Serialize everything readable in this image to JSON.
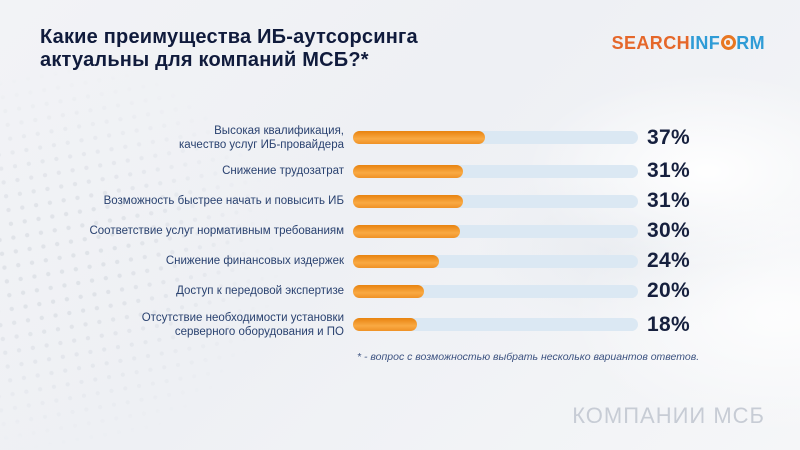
{
  "slide": {
    "title_line1": "Какие преимущества ИБ-аутсорсинга",
    "title_line2": "актуальны для компаний МСБ?*",
    "footnote": "* - вопрос с возможностью выбрать несколько вариантов ответов.",
    "watermark": "КОМПАНИИ МСБ"
  },
  "logo": {
    "part1": "SEARCH",
    "part2": "INF",
    "part3": "RM",
    "o_icon": "target-circle-icon"
  },
  "colors": {
    "accent_orange": "#ee8c1e",
    "logo_orange": "#e5672a",
    "logo_blue": "#2f9cd6",
    "title_navy": "#101b3c",
    "label_blue": "#2a4270",
    "value_navy": "#16203e",
    "track_blue": "#dbe8f3",
    "footnote_blue": "#3c5280",
    "watermark_gray": "#c7ccd5"
  },
  "chart_data": {
    "type": "bar",
    "orientation": "horizontal",
    "title": "Какие преимущества ИБ-аутсорсинга актуальны для компаний МСБ?*",
    "categories": [
      "Высокая квалификация, качество услуг ИБ-провайдера",
      "Снижение трудозатрат",
      "Возможность быстрее начать и повысить ИБ",
      "Соответствие услуг нормативным требованиям",
      "Снижение финансовых издержек",
      "Доступ к передовой экспертизе",
      "Отсутствие необходимости установки серверного оборудования и ПО"
    ],
    "categories_wrapped": [
      [
        "Высокая квалификация,",
        "качество услуг ИБ-провайдера"
      ],
      [
        "Снижение трудозатрат"
      ],
      [
        "Возможность быстрее начать и повысить ИБ"
      ],
      [
        "Соответствие услуг нормативным требованиям"
      ],
      [
        "Снижение финансовых издержек"
      ],
      [
        "Доступ к передовой экспертизе"
      ],
      [
        "Отсутствие необходимости установки",
        "серверного оборудования и ПО"
      ]
    ],
    "values": [
      37,
      31,
      31,
      30,
      24,
      20,
      18
    ],
    "value_labels": [
      "37%",
      "31%",
      "31%",
      "30%",
      "24%",
      "20%",
      "18%"
    ],
    "unit": "%",
    "xlim": [
      0,
      80
    ],
    "grid": false,
    "legend": false,
    "value_label_position": "right-of-track"
  }
}
